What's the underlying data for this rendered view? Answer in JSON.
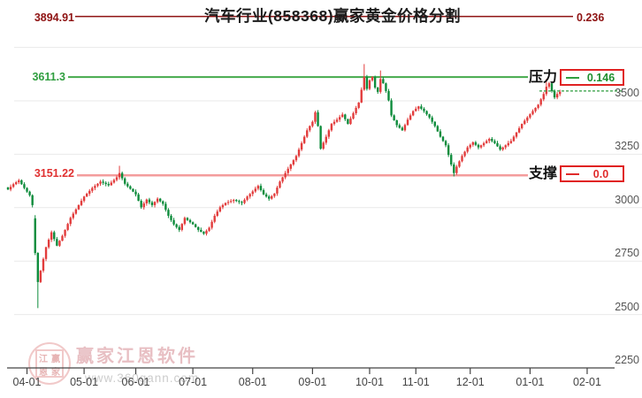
{
  "title": "汽车行业(858368)赢家黄金价格分割",
  "levels": {
    "upper": {
      "left_label": "3894.91",
      "right_label": "0.236",
      "value": 3894.91,
      "color": "#8e1212"
    },
    "resistance": {
      "label": "3611.3",
      "value": 3611.3,
      "color": "#44aa4c"
    },
    "support": {
      "label": "3151.22",
      "value": 3151.22,
      "color": "#f49c9c"
    }
  },
  "boxes": {
    "pressure": {
      "title": "压力",
      "value": "0.146",
      "color": "#1e8f2e",
      "border_color": "#e02222"
    },
    "support": {
      "title": "支撑",
      "value": "0.0",
      "color": "#e02a2a",
      "border_color": "#e02222"
    }
  },
  "watermark": {
    "brand": "赢家江恩软件",
    "url": "www.360gann.com",
    "seal_chars": [
      "江",
      "赢",
      "恩",
      "家"
    ]
  },
  "chart_data": {
    "type": "candlestick",
    "title": "汽车行业(858368)赢家黄金价格分割",
    "x_axis": {
      "tick_labels": [
        "04-01",
        "05-01",
        "06-01",
        "07-01",
        "08-01",
        "09-01",
        "10-01",
        "11-01",
        "12-01",
        "01-01",
        "02-01"
      ],
      "tick_candle_index": [
        7,
        28,
        47,
        68,
        90,
        112,
        133,
        150,
        170,
        192,
        213
      ]
    },
    "y_axis": {
      "tick_values": [
        3500,
        3250,
        3000,
        2750,
        2500,
        2250
      ],
      "tick_labels": [
        "3500",
        "3250",
        "3000",
        "2750",
        "2500",
        "2250"
      ],
      "unlabeled_gridline_values": [
        3750
      ],
      "min": 2250,
      "max": 3500,
      "grid": "horizontal-only"
    },
    "reference_levels": {
      "upper_line": 3894.91,
      "upper_ratio": 0.236,
      "resistance_line": 3611.3,
      "resistance_ratio": 0.146,
      "support_line": 3151.22,
      "support_ratio": 0.0,
      "recent_price_dashed_level": 3546
    },
    "candle_count": 204,
    "note": "close-price waypoints [candle_index, close] read from the chart; daily OHLC approximated deterministically from them",
    "trend_points": [
      [
        0,
        3085
      ],
      [
        2,
        3110
      ],
      [
        4,
        3128
      ],
      [
        6,
        3092
      ],
      [
        8,
        3058
      ],
      [
        9,
        3012
      ],
      [
        10,
        2788
      ],
      [
        11,
        2652
      ],
      [
        12,
        2705
      ],
      [
        14,
        2815
      ],
      [
        16,
        2885
      ],
      [
        18,
        2822
      ],
      [
        20,
        2868
      ],
      [
        23,
        2952
      ],
      [
        26,
        3012
      ],
      [
        28,
        3052
      ],
      [
        31,
        3092
      ],
      [
        34,
        3122
      ],
      [
        37,
        3105
      ],
      [
        40,
        3142
      ],
      [
        41,
        3162
      ],
      [
        43,
        3112
      ],
      [
        45,
        3088
      ],
      [
        47,
        3062
      ],
      [
        49,
        3002
      ],
      [
        51,
        3038
      ],
      [
        53,
        3012
      ],
      [
        55,
        3042
      ],
      [
        57,
        3018
      ],
      [
        59,
        2962
      ],
      [
        61,
        2922
      ],
      [
        63,
        2896
      ],
      [
        65,
        2952
      ],
      [
        68,
        2922
      ],
      [
        70,
        2896
      ],
      [
        72,
        2878
      ],
      [
        74,
        2906
      ],
      [
        76,
        2962
      ],
      [
        78,
        3002
      ],
      [
        80,
        3022
      ],
      [
        83,
        3036
      ],
      [
        86,
        3022
      ],
      [
        88,
        3052
      ],
      [
        90,
        3076
      ],
      [
        92,
        3102
      ],
      [
        94,
        3062
      ],
      [
        96,
        3042
      ],
      [
        98,
        3066
      ],
      [
        100,
        3122
      ],
      [
        102,
        3162
      ],
      [
        104,
        3202
      ],
      [
        106,
        3242
      ],
      [
        108,
        3302
      ],
      [
        110,
        3362
      ],
      [
        112,
        3402
      ],
      [
        113,
        3446
      ],
      [
        114,
        3382
      ],
      [
        115,
        3276
      ],
      [
        117,
        3332
      ],
      [
        119,
        3392
      ],
      [
        121,
        3412
      ],
      [
        123,
        3436
      ],
      [
        125,
        3392
      ],
      [
        127,
        3442
      ],
      [
        129,
        3492
      ],
      [
        131,
        3612
      ],
      [
        132,
        3556
      ],
      [
        133,
        3596
      ],
      [
        134,
        3612
      ],
      [
        135,
        3562
      ],
      [
        136,
        3542
      ],
      [
        137,
        3602
      ],
      [
        138,
        3582
      ],
      [
        139,
        3546
      ],
      [
        140,
        3502
      ],
      [
        141,
        3432
      ],
      [
        143,
        3386
      ],
      [
        145,
        3362
      ],
      [
        147,
        3412
      ],
      [
        149,
        3452
      ],
      [
        151,
        3474
      ],
      [
        153,
        3452
      ],
      [
        155,
        3422
      ],
      [
        157,
        3382
      ],
      [
        159,
        3332
      ],
      [
        161,
        3292
      ],
      [
        163,
        3202
      ],
      [
        164,
        3162
      ],
      [
        165,
        3192
      ],
      [
        167,
        3242
      ],
      [
        169,
        3282
      ],
      [
        171,
        3306
      ],
      [
        173,
        3282
      ],
      [
        175,
        3302
      ],
      [
        177,
        3322
      ],
      [
        179,
        3302
      ],
      [
        181,
        3272
      ],
      [
        183,
        3292
      ],
      [
        185,
        3312
      ],
      [
        187,
        3352
      ],
      [
        189,
        3392
      ],
      [
        191,
        3422
      ],
      [
        193,
        3452
      ],
      [
        195,
        3482
      ],
      [
        197,
        3532
      ],
      [
        198,
        3566
      ],
      [
        199,
        3582
      ],
      [
        200,
        3546
      ],
      [
        201,
        3516
      ],
      [
        202,
        3532
      ],
      [
        203,
        3542
      ]
    ],
    "overrides": {
      "10": {
        "open": 2950,
        "high": 2965
      },
      "11": {
        "low": 2530
      },
      "41": {
        "high": 3196
      },
      "131": {
        "high": 3672
      },
      "137": {
        "high": 3642
      },
      "164": {
        "low": 3146
      },
      "198": {
        "high": 3602
      }
    },
    "colors": {
      "up": "#e23c3c",
      "down": "#0e8c3c",
      "grid": "#e9e9e9",
      "axis": "#444444"
    },
    "seed": 7
  }
}
